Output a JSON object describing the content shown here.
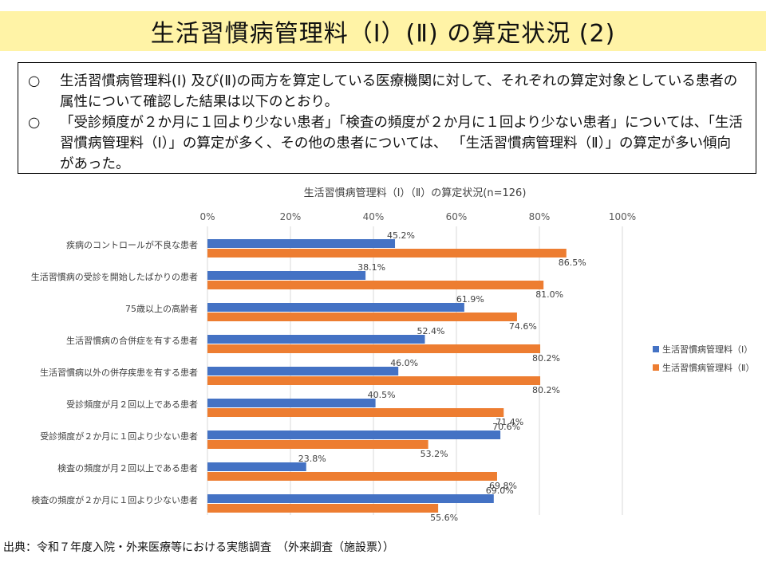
{
  "header": {
    "title": "生活習慣病管理料（Ⅰ）(Ⅱ) の算定状況 (2)"
  },
  "summary": {
    "bullets": [
      {
        "mark": "○",
        "text": "生活習慣病管理料(Ⅰ) 及び(Ⅱ)の両方を算定している医療機関に対して、それぞれの算定対象としている患者の属性について確認した結果は以下のとおり。"
      },
      {
        "mark": "○",
        "text": "「受診頻度が２か月に１回より少ない患者」「検査の頻度が２か月に１回より少ない患者」については、「生活習慣病管理料（Ⅰ）」の算定が多く、その他の患者については、 「生活習慣病管理料（Ⅱ）」の算定が多い傾向があった。"
      }
    ]
  },
  "chart_data": {
    "type": "bar",
    "orientation": "horizontal",
    "title": "生活習慣病管理料（Ⅰ）（Ⅱ）の算定状況(n=126)",
    "categories": [
      "疾病のコントロールが不良な患者",
      "生活習慣病の受診を開始したばかりの患者",
      "75歳以上の高齢者",
      "生活習慣病の合併症を有する患者",
      "生活習慣病以外の併存疾患を有する患者",
      "受診頻度が月２回以上である患者",
      "受診頻度が２か月に１回より少ない患者",
      "検査の頻度が月２回以上である患者",
      "検査の頻度が２か月に１回より少ない患者"
    ],
    "series": [
      {
        "name": "生活習慣病管理料（Ⅰ）",
        "color": "#4472c4",
        "values": [
          45.2,
          38.1,
          61.9,
          52.4,
          46.0,
          40.5,
          70.6,
          23.8,
          69.0
        ]
      },
      {
        "name": "生活習慣病管理料（Ⅱ）",
        "color": "#ed7d31",
        "values": [
          86.5,
          81.0,
          74.6,
          80.2,
          80.2,
          71.4,
          53.2,
          69.8,
          55.6
        ]
      }
    ],
    "value_labels": [
      [
        "45.2%",
        "38.1%",
        "61.9%",
        "52.4%",
        "46.0%",
        "40.5%",
        "70.6%",
        "23.8%",
        "69.0%"
      ],
      [
        "86.5%",
        "81.0%",
        "74.6%",
        "80.2%",
        "80.2%",
        "71.4%",
        "53.2%",
        "69.8%",
        "55.6%"
      ]
    ],
    "xlim": [
      0,
      100
    ],
    "x_ticks": [
      "0%",
      "20%",
      "40%",
      "60%",
      "80%",
      "100%"
    ],
    "x_tick_values": [
      0,
      20,
      40,
      60,
      80,
      100
    ],
    "grid": true,
    "legend_position": "right"
  },
  "source": "出典：令和７年度入院・外来医療等における実態調査　（外来調査（施設票））"
}
